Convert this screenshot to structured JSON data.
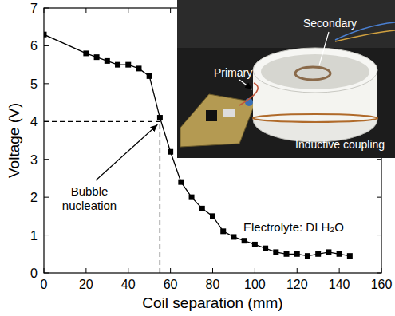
{
  "chart_data": {
    "type": "line",
    "x": [
      0,
      20,
      25,
      30,
      35,
      40,
      45,
      50,
      55,
      60,
      65,
      70,
      75,
      80,
      85,
      90,
      95,
      100,
      105,
      110,
      115,
      120,
      125,
      130,
      135,
      140,
      145
    ],
    "values": [
      6.3,
      5.8,
      5.7,
      5.6,
      5.5,
      5.5,
      5.4,
      5.2,
      4.1,
      3.2,
      2.4,
      2.0,
      1.7,
      1.5,
      1.1,
      0.95,
      0.85,
      0.75,
      0.65,
      0.55,
      0.5,
      0.5,
      0.45,
      0.5,
      0.55,
      0.5,
      0.45
    ],
    "color": "#000000",
    "marker": "square",
    "line_style": "solid",
    "x_label": "Coil separation (mm)",
    "y_label": "Voltage (V)",
    "xlim": [
      0,
      160
    ],
    "xticks": [
      0,
      20,
      40,
      60,
      80,
      100,
      120,
      140,
      160
    ],
    "ylim": [
      0,
      7
    ],
    "yticks": [
      0,
      1,
      2,
      3,
      4,
      5,
      6,
      7
    ],
    "grid": false,
    "reference": {
      "x": 55,
      "y": 4
    },
    "annotations": [
      {
        "text": "Bubble nucleation",
        "x": 55,
        "y": 4
      },
      {
        "text": "Electrolyte: DI H₂O"
      }
    ],
    "inset": {
      "labels": [
        "Primary",
        "Secondary",
        "Inductive coupling"
      ]
    }
  }
}
